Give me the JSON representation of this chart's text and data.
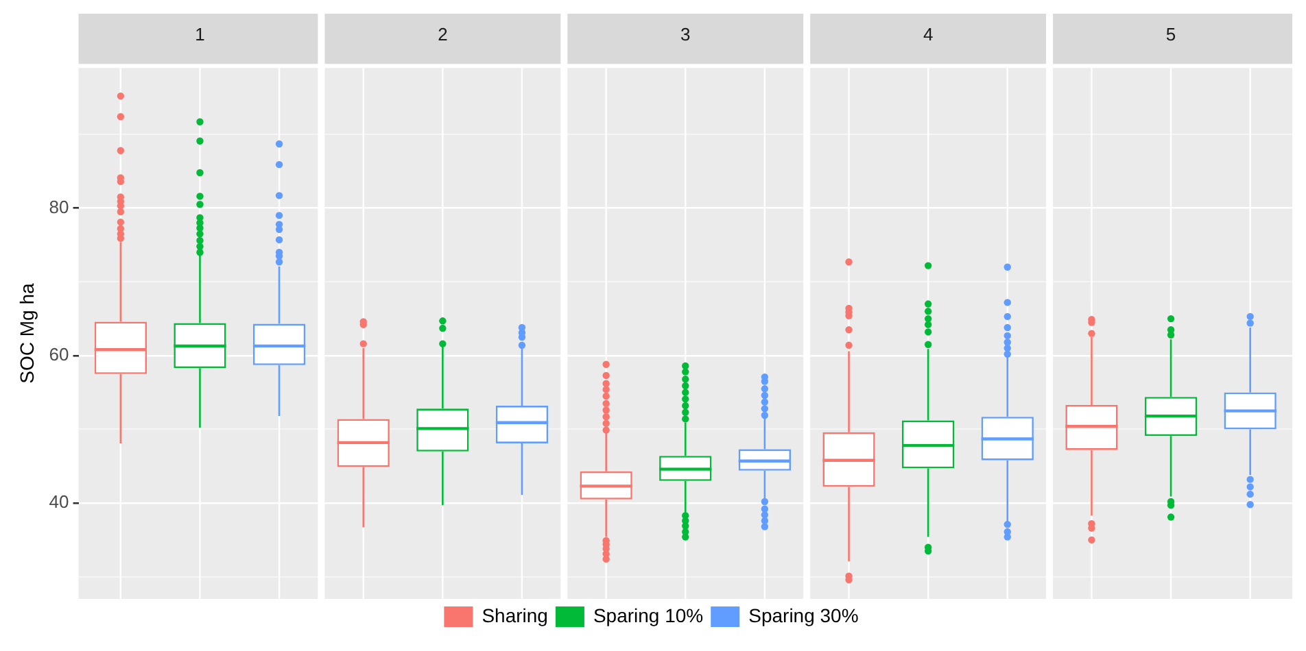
{
  "chart_data": {
    "type": "box",
    "ylabel": "SOC Mg ha",
    "categories": [
      "1",
      "2",
      "3",
      "4",
      "5"
    ],
    "ylim": [
      27,
      99
    ],
    "yticks": [
      {
        "value": 30,
        "label": null
      },
      40,
      {
        "value": 50,
        "label": null
      },
      60,
      {
        "value": 70,
        "label": null
      },
      80,
      {
        "value": 90,
        "label": null
      }
    ],
    "grid": true,
    "marker": "circle",
    "legend": "bottom",
    "series": [
      {
        "name": "Sharing",
        "color": "#f8766d",
        "boxes": [
          {
            "low": 48.1,
            "q1": 57.5,
            "median": 60.8,
            "q3": 64.6,
            "high": 75.4,
            "outliers": [
              75.9,
              76.5,
              77.2,
              78.1,
              79.5,
              80.3,
              80.9,
              81.5,
              83.6,
              84.1,
              87.8,
              92.4,
              95.2
            ]
          },
          {
            "low": 36.7,
            "q1": 44.9,
            "median": 48.2,
            "q3": 51.4,
            "high": 61,
            "outliers": [
              61.6,
              64.2,
              64.6
            ]
          },
          {
            "low": 35.4,
            "q1": 40.5,
            "median": 42.3,
            "q3": 44.3,
            "high": 49.6,
            "outliers": [
              32.4,
              33.1,
              33.8,
              34.4,
              34.9,
              49.9,
              50.8,
              51.7,
              52.6,
              53.5,
              54.5,
              55.4,
              56.2,
              57.3,
              58.8
            ]
          },
          {
            "low": 32.1,
            "q1": 42.2,
            "median": 45.8,
            "q3": 49.6,
            "high": 60.6,
            "outliers": [
              29.6,
              30.1,
              61.4,
              63.5,
              65.4,
              65.9,
              66.4,
              72.7
            ]
          },
          {
            "low": 38.3,
            "q1": 47.2,
            "median": 50.4,
            "q3": 53.3,
            "high": 62.5,
            "outliers": [
              35,
              36.6,
              37.2,
              63,
              64.5,
              64.9
            ]
          }
        ]
      },
      {
        "name": "Sparing 10%",
        "color": "#00ba38",
        "boxes": [
          {
            "low": 50.2,
            "q1": 58.3,
            "median": 61.3,
            "q3": 64.4,
            "high": 73.7,
            "outliers": [
              74,
              74.8,
              75.6,
              76.5,
              77.3,
              78,
              78.7,
              80.5,
              81.6,
              84.8,
              89.1,
              91.7
            ]
          },
          {
            "low": 39.7,
            "q1": 47,
            "median": 50.1,
            "q3": 52.8,
            "high": 61.3,
            "outliers": [
              61.6,
              63.7,
              64.7
            ]
          },
          {
            "low": 38.6,
            "q1": 43,
            "median": 44.6,
            "q3": 46.4,
            "high": 50.9,
            "outliers": [
              35.4,
              36.1,
              36.9,
              37.6,
              38.3,
              51.4,
              52.3,
              53.2,
              54.1,
              55,
              55.9,
              56.8,
              57.8,
              58.6
            ]
          },
          {
            "low": 35.4,
            "q1": 44.7,
            "median": 47.8,
            "q3": 51.2,
            "high": 60.9,
            "outliers": [
              33.5,
              34,
              61.5,
              63.2,
              64.2,
              65,
              66,
              67,
              72.2
            ]
          },
          {
            "low": 40.9,
            "q1": 49.1,
            "median": 51.8,
            "q3": 54.4,
            "high": 62.2,
            "outliers": [
              38.1,
              39.7,
              40.2,
              62.8,
              63.5,
              65
            ]
          }
        ]
      },
      {
        "name": "Sparing 30%",
        "color": "#619cff",
        "boxes": [
          {
            "low": 51.8,
            "q1": 58.7,
            "median": 61.3,
            "q3": 64.3,
            "high": 72.1,
            "outliers": [
              72.7,
              73.5,
              74,
              75.7,
              77.1,
              77.8,
              79,
              81.7,
              85.9,
              88.7
            ]
          },
          {
            "low": 41.1,
            "q1": 48.1,
            "median": 50.9,
            "q3": 53.2,
            "high": 61,
            "outliers": [
              61.4,
              62.5,
              63.1,
              63.8
            ]
          },
          {
            "low": 40.2,
            "q1": 44.4,
            "median": 45.7,
            "q3": 47.3,
            "high": 51.5,
            "outliers": [
              36.8,
              37.6,
              38.4,
              39.2,
              40.2,
              51.9,
              52.8,
              53.7,
              54.6,
              55.5,
              56.5,
              57.1
            ]
          },
          {
            "low": 37.3,
            "q1": 45.8,
            "median": 48.7,
            "q3": 51.7,
            "high": 59.9,
            "outliers": [
              35.4,
              36.1,
              37.1,
              60.2,
              61,
              61.8,
              62.7,
              63.8,
              65.3,
              67.2,
              72
            ]
          },
          {
            "low": 43.8,
            "q1": 50,
            "median": 52.5,
            "q3": 55,
            "high": 63.8,
            "outliers": [
              39.8,
              41.2,
              42.2,
              43.2,
              64.4,
              65.3
            ]
          }
        ]
      }
    ]
  }
}
